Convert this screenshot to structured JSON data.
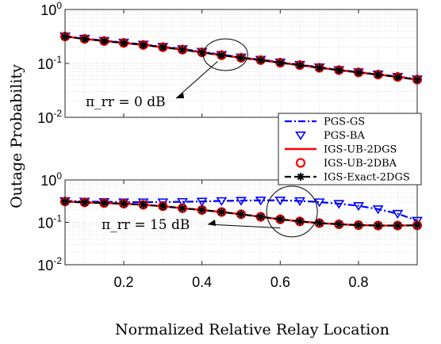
{
  "chart_data": [
    {
      "type": "line",
      "panel": "top",
      "xlim": [
        0.05,
        0.95
      ],
      "ylim": [
        0.01,
        1
      ],
      "yscale": "log",
      "grid": true,
      "ytick_labels": [
        "10^-2",
        "10^-1",
        "10^0"
      ],
      "annotation": "π_rr = 0 dB",
      "x": [
        0.05,
        0.1,
        0.15,
        0.2,
        0.25,
        0.3,
        0.35,
        0.4,
        0.45,
        0.5,
        0.55,
        0.6,
        0.65,
        0.7,
        0.75,
        0.8,
        0.85,
        0.9,
        0.95
      ],
      "series": [
        {
          "name": "PGS-GS",
          "values": [
            0.32,
            0.29,
            0.265,
            0.245,
            0.225,
            0.205,
            0.185,
            0.165,
            0.145,
            0.13,
            0.118,
            0.105,
            0.095,
            0.085,
            0.076,
            0.069,
            0.063,
            0.057,
            0.051
          ]
        },
        {
          "name": "PGS-BA",
          "values": [
            0.32,
            0.29,
            0.265,
            0.245,
            0.225,
            0.205,
            0.185,
            0.165,
            0.145,
            0.13,
            0.118,
            0.105,
            0.095,
            0.085,
            0.076,
            0.069,
            0.063,
            0.057,
            0.051
          ]
        },
        {
          "name": "IGS-UB-2DGS",
          "values": [
            0.315,
            0.285,
            0.26,
            0.24,
            0.22,
            0.2,
            0.18,
            0.16,
            0.142,
            0.127,
            0.115,
            0.103,
            0.093,
            0.083,
            0.075,
            0.068,
            0.062,
            0.056,
            0.05
          ]
        },
        {
          "name": "IGS-UB-2DBA",
          "values": [
            0.315,
            0.285,
            0.26,
            0.24,
            0.22,
            0.2,
            0.18,
            0.16,
            0.142,
            0.127,
            0.115,
            0.103,
            0.093,
            0.083,
            0.075,
            0.068,
            0.062,
            0.056,
            0.05
          ]
        },
        {
          "name": "IGS-Exact-2DGS",
          "values": [
            0.315,
            0.285,
            0.26,
            0.24,
            0.22,
            0.2,
            0.18,
            0.16,
            0.142,
            0.127,
            0.115,
            0.103,
            0.093,
            0.083,
            0.075,
            0.068,
            0.062,
            0.056,
            0.05
          ]
        }
      ]
    },
    {
      "type": "line",
      "panel": "bottom",
      "xlim": [
        0.05,
        0.95
      ],
      "ylim": [
        0.01,
        1
      ],
      "yscale": "log",
      "grid": true,
      "xlabel": "Normalized Relative Relay Location",
      "xtick_labels": [
        "0.2",
        "0.4",
        "0.6",
        "0.8"
      ],
      "ytick_labels": [
        "10^-2",
        "10^-1",
        "10^0"
      ],
      "annotation": "π_rr = 15 dB",
      "x": [
        0.05,
        0.1,
        0.15,
        0.2,
        0.25,
        0.3,
        0.35,
        0.4,
        0.45,
        0.5,
        0.55,
        0.6,
        0.65,
        0.7,
        0.75,
        0.8,
        0.85,
        0.9,
        0.95
      ],
      "series": [
        {
          "name": "PGS-GS",
          "values": [
            0.32,
            0.31,
            0.305,
            0.3,
            0.3,
            0.3,
            0.305,
            0.31,
            0.32,
            0.325,
            0.33,
            0.33,
            0.32,
            0.3,
            0.275,
            0.245,
            0.205,
            0.16,
            0.11
          ]
        },
        {
          "name": "PGS-BA",
          "values": [
            0.32,
            0.31,
            0.305,
            0.3,
            0.3,
            0.3,
            0.305,
            0.31,
            0.32,
            0.325,
            0.33,
            0.33,
            0.32,
            0.3,
            0.275,
            0.245,
            0.205,
            0.16,
            0.11
          ]
        },
        {
          "name": "IGS-UB-2DGS",
          "values": [
            0.31,
            0.295,
            0.285,
            0.275,
            0.26,
            0.24,
            0.215,
            0.195,
            0.175,
            0.155,
            0.135,
            0.118,
            0.105,
            0.096,
            0.09,
            0.086,
            0.084,
            0.084,
            0.085
          ]
        },
        {
          "name": "IGS-UB-2DBA",
          "values": [
            0.31,
            0.295,
            0.285,
            0.275,
            0.26,
            0.24,
            0.215,
            0.195,
            0.175,
            0.155,
            0.135,
            0.118,
            0.105,
            0.096,
            0.09,
            0.086,
            0.084,
            0.084,
            0.085
          ]
        },
        {
          "name": "IGS-Exact-2DGS",
          "values": [
            0.31,
            0.295,
            0.285,
            0.275,
            0.26,
            0.24,
            0.215,
            0.195,
            0.175,
            0.155,
            0.135,
            0.118,
            0.105,
            0.096,
            0.09,
            0.086,
            0.084,
            0.084,
            0.085
          ]
        }
      ]
    }
  ],
  "figure": {
    "ylabel": "Outage Probability"
  },
  "legend": {
    "placement": "right-middle",
    "entries": [
      {
        "label": "PGS-GS",
        "color": "#0000ff",
        "style": "dash-dot"
      },
      {
        "label": "PGS-BA",
        "color": "#0000ff",
        "marker": "triangle-down"
      },
      {
        "label": "IGS-UB-2DGS",
        "color": "#ff0000",
        "style": "solid"
      },
      {
        "label": "IGS-UB-2DBA",
        "color": "#ff0000",
        "marker": "circle"
      },
      {
        "label": "IGS-Exact-2DGS",
        "color": "#000000",
        "style": "dashed",
        "marker": "asterisk"
      }
    ]
  }
}
